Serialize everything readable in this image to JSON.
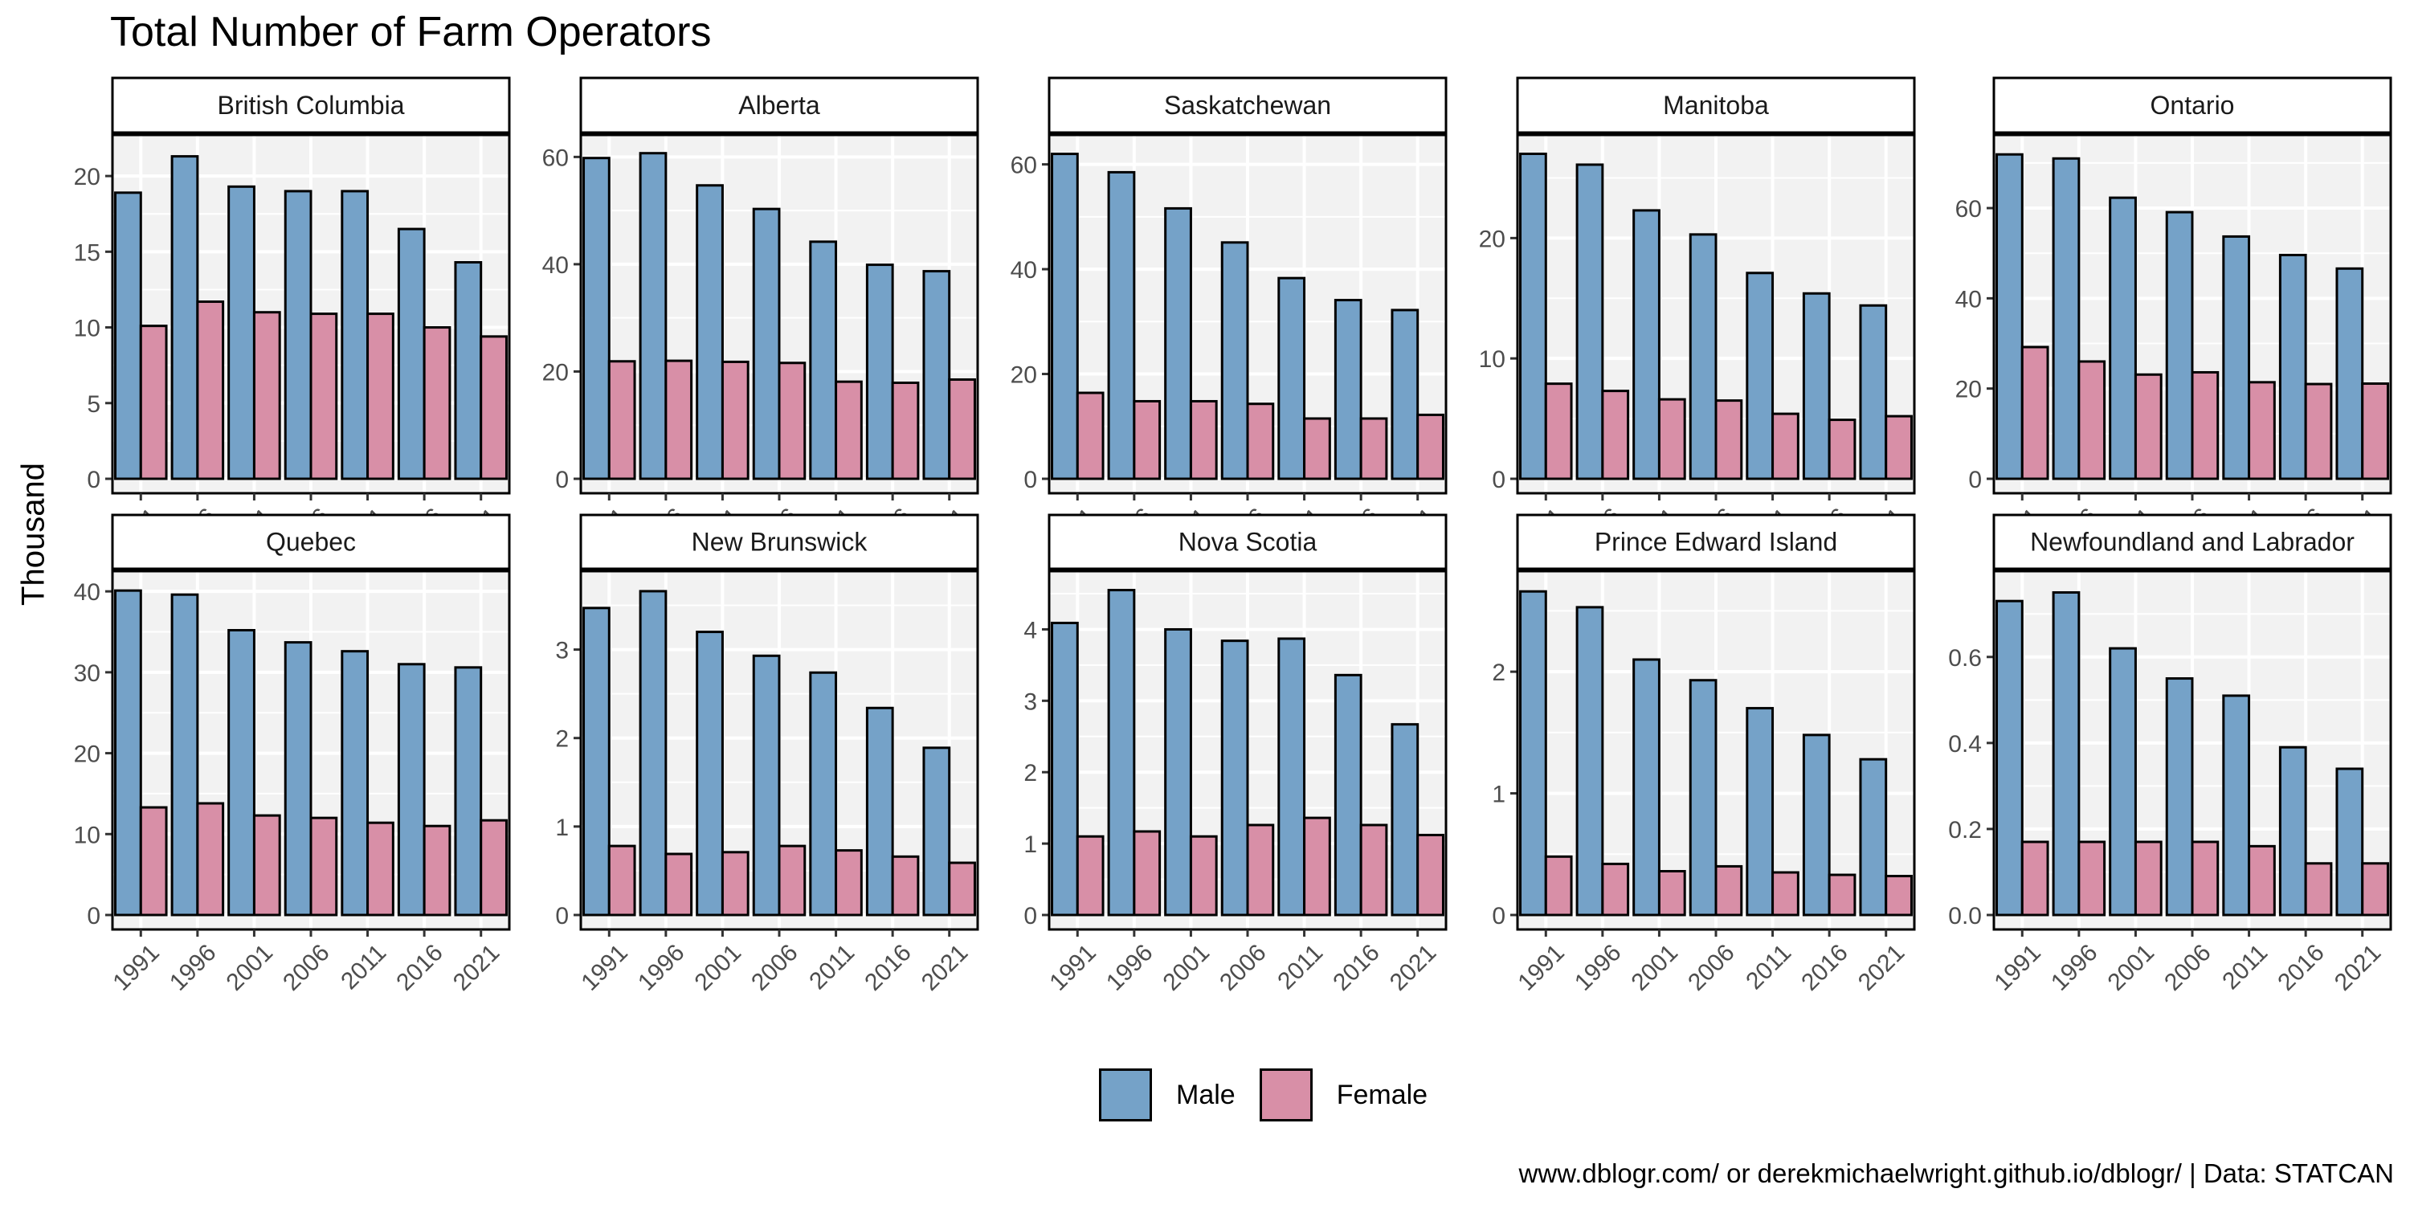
{
  "title": "Total Number of Farm Operators",
  "caption": "www.dblogr.com/ or derekmichaelwright.github.io/dblogr/ | Data: STATCAN",
  "colors": {
    "Male": "#75A2C8",
    "Female": "#D88FA7",
    "panel_bg": "#F2F2F2",
    "grid": "#FFFFFF"
  },
  "legend": [
    {
      "name": "Male",
      "color": "#75A2C8"
    },
    {
      "name": "Female",
      "color": "#D88FA7"
    }
  ],
  "chart_data": {
    "type": "bar",
    "title": "Total Number of Farm Operators",
    "xlabel": "",
    "ylabel": "Thousand",
    "categories": [
      "1991",
      "1996",
      "2001",
      "2006",
      "2011",
      "2016",
      "2021"
    ],
    "legend_position": "bottom",
    "grid": true,
    "facets": [
      {
        "name": "British Columbia",
        "ylim": [
          0,
          22.5
        ],
        "yticks": [
          0,
          5,
          10,
          15,
          20
        ],
        "tick_labels": [
          "0",
          "5",
          "10",
          "15",
          "20"
        ],
        "series": [
          {
            "name": "Male",
            "values": [
              18.9,
              21.3,
              19.3,
              19.0,
              19.0,
              16.5,
              14.3
            ]
          },
          {
            "name": "Female",
            "values": [
              10.1,
              11.7,
              11.0,
              10.9,
              10.9,
              10.0,
              9.4
            ]
          }
        ]
      },
      {
        "name": "Alberta",
        "ylim": [
          0,
          63.5
        ],
        "yticks": [
          0,
          20,
          40,
          60
        ],
        "tick_labels": [
          "0",
          "20",
          "40",
          "60"
        ],
        "series": [
          {
            "name": "Male",
            "values": [
              59.8,
              60.7,
              54.7,
              50.3,
              44.2,
              39.9,
              38.7
            ]
          },
          {
            "name": "Female",
            "values": [
              21.9,
              22.0,
              21.8,
              21.6,
              18.1,
              17.9,
              18.5
            ]
          }
        ]
      },
      {
        "name": "Saskatchewan",
        "ylim": [
          0,
          65
        ],
        "yticks": [
          0,
          20,
          40,
          60
        ],
        "tick_labels": [
          "0",
          "20",
          "40",
          "60"
        ],
        "series": [
          {
            "name": "Male",
            "values": [
              62.0,
              58.5,
              51.6,
              45.1,
              38.3,
              34.1,
              32.2
            ]
          },
          {
            "name": "Female",
            "values": [
              16.4,
              14.8,
              14.8,
              14.3,
              11.5,
              11.5,
              12.2
            ]
          }
        ]
      },
      {
        "name": "Manitoba",
        "ylim": [
          0,
          28.3
        ],
        "yticks": [
          0,
          10,
          20
        ],
        "tick_labels": [
          "0",
          "10",
          "20"
        ],
        "series": [
          {
            "name": "Male",
            "values": [
              27.0,
              26.1,
              22.3,
              20.3,
              17.1,
              15.4,
              14.4
            ]
          },
          {
            "name": "Female",
            "values": [
              7.9,
              7.3,
              6.6,
              6.5,
              5.4,
              4.9,
              5.2
            ]
          }
        ]
      },
      {
        "name": "Ontario",
        "ylim": [
          0,
          75.5
        ],
        "yticks": [
          0,
          20,
          40,
          60
        ],
        "tick_labels": [
          "0",
          "20",
          "40",
          "60"
        ],
        "series": [
          {
            "name": "Male",
            "values": [
              71.9,
              71.0,
              62.3,
              59.1,
              53.7,
              49.6,
              46.6
            ]
          },
          {
            "name": "Female",
            "values": [
              29.2,
              26.0,
              23.1,
              23.6,
              21.4,
              21.0,
              21.1
            ]
          }
        ]
      },
      {
        "name": "Quebec",
        "ylim": [
          0,
          42.1
        ],
        "yticks": [
          0,
          10,
          20,
          30,
          40
        ],
        "tick_labels": [
          "0",
          "10",
          "20",
          "30",
          "40"
        ],
        "series": [
          {
            "name": "Male",
            "values": [
              40.1,
              39.6,
              35.2,
              33.7,
              32.6,
              31.0,
              30.6
            ]
          },
          {
            "name": "Female",
            "values": [
              13.3,
              13.8,
              12.3,
              12.0,
              11.4,
              11.0,
              11.7
            ]
          }
        ]
      },
      {
        "name": "New Brunswick",
        "ylim": [
          0,
          3.85
        ],
        "yticks": [
          0,
          1,
          2,
          3
        ],
        "tick_labels": [
          "0",
          "1",
          "2",
          "3"
        ],
        "series": [
          {
            "name": "Male",
            "values": [
              3.47,
              3.66,
              3.2,
              2.93,
              2.74,
              2.34,
              1.89
            ]
          },
          {
            "name": "Female",
            "values": [
              0.78,
              0.69,
              0.71,
              0.78,
              0.73,
              0.66,
              0.59
            ]
          }
        ]
      },
      {
        "name": "Nova Scotia",
        "ylim": [
          0,
          4.77
        ],
        "yticks": [
          0,
          1,
          2,
          3,
          4
        ],
        "tick_labels": [
          "0",
          "1",
          "2",
          "3",
          "4"
        ],
        "series": [
          {
            "name": "Male",
            "values": [
              4.09,
              4.55,
              4.0,
              3.84,
              3.87,
              3.36,
              2.67
            ]
          },
          {
            "name": "Female",
            "values": [
              1.1,
              1.17,
              1.1,
              1.26,
              1.36,
              1.26,
              1.12
            ]
          }
        ]
      },
      {
        "name": "Prince Edward Island",
        "ylim": [
          0,
          2.8
        ],
        "yticks": [
          0,
          1,
          2
        ],
        "tick_labels": [
          "0",
          "1",
          "2"
        ],
        "series": [
          {
            "name": "Male",
            "values": [
              2.66,
              2.53,
              2.1,
              1.93,
              1.7,
              1.48,
              1.28
            ]
          },
          {
            "name": "Female",
            "values": [
              0.48,
              0.42,
              0.36,
              0.4,
              0.35,
              0.33,
              0.32
            ]
          }
        ]
      },
      {
        "name": "Newfoundland and Labrador",
        "ylim": [
          0,
          0.792
        ],
        "yticks": [
          0,
          0.2,
          0.4,
          0.6
        ],
        "tick_labels": [
          "0.0",
          "0.2",
          "0.4",
          "0.6"
        ],
        "series": [
          {
            "name": "Male",
            "values": [
              0.73,
              0.75,
              0.62,
              0.55,
              0.51,
              0.39,
              0.34
            ]
          },
          {
            "name": "Female",
            "values": [
              0.17,
              0.17,
              0.17,
              0.17,
              0.16,
              0.12,
              0.12
            ]
          }
        ]
      }
    ]
  }
}
